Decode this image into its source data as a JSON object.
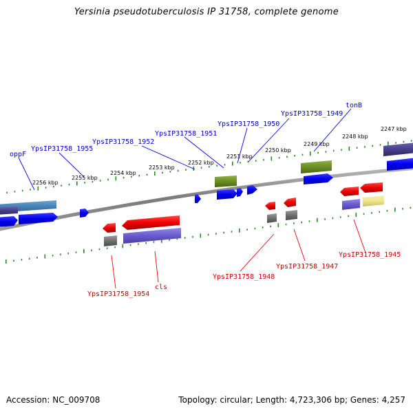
{
  "title": "Yersinia pseudotuberculosis IP 31758, complete genome",
  "footer": {
    "accession": "Accession: NC_009708",
    "summary": "Topology: circular; Length: 4,723,306 bp; Genes: 4,257"
  },
  "ruler": {
    "labels": [
      "2256 kbp",
      "2255 kbp",
      "2254 kbp",
      "2253 kbp",
      "2252 kbp",
      "2251 kbp",
      "2250 kbp",
      "2249 kbp",
      "2248 kbp",
      "2247 kbp"
    ]
  },
  "labels_top": [
    "oppF",
    "YpsIP31758_1955",
    "YpsIP31758_1952",
    "YpsIP31758_1951",
    "YpsIP31758_1950",
    "YpsIP31758_1949",
    "tonB"
  ],
  "labels_bottom": [
    "YpsIP31758_1954",
    "cls",
    "YpsIP31758_1948",
    "YpsIP31758_1947",
    "YpsIP31758_1945"
  ],
  "colors": {
    "forward_cds": "#0000ee",
    "reverse_cds": "#ee0000",
    "forward_label": "#0000cc",
    "reverse_label": "#cc0000",
    "tick": "#228b22",
    "olive_feature": "#6b8e23",
    "slate_feature": "#6a5acd",
    "gray_feature": "#707070",
    "khaki_feature": "#f0e68c",
    "steel_feature": "#4682b4"
  }
}
